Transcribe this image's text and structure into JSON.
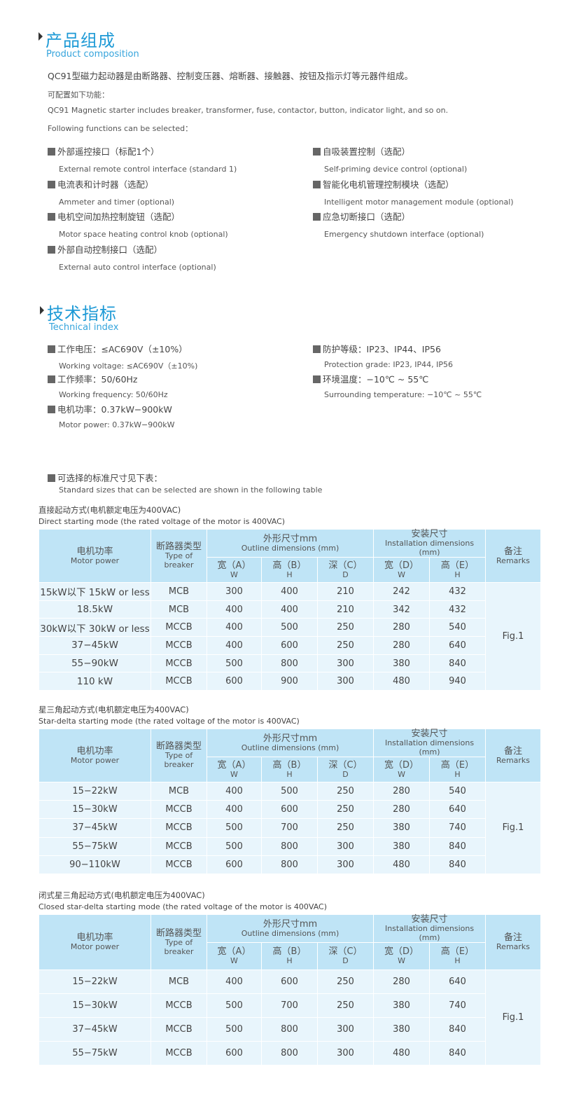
{
  "composition": {
    "title_cn": "产品组成",
    "title_en": "Product composition",
    "intro_cn": "QC91型磁力起动器是由断路器、控制变压器、熔断器、接触器、按钮及指示灯等元器件组成。",
    "config_cn": "可配置如下功能：",
    "intro_en": "QC91 Magnetic starter includes breaker, transformer, fuse, contactor, button, indicator light, and so on.",
    "config_en": "Following functions can be selected：",
    "features": [
      {
        "cn": "外部遥控接口（标配1个）",
        "en": "External remote control interface (standard 1)"
      },
      {
        "cn": "自吸装置控制（选配）",
        "en": "Self-priming device control (optional)"
      },
      {
        "cn": "电流表和计时器（选配）",
        "en": "Ammeter and timer (optional)"
      },
      {
        "cn": "智能化电机管理控制模块（选配）",
        "en": "Intelligent motor management module (optional)"
      },
      {
        "cn": "电机空间加热控制旋钮（选配）",
        "en": "Motor space heating control knob (optional)"
      },
      {
        "cn": "应急切断接口（选配）",
        "en": "Emergency shutdown interface (optional)"
      },
      {
        "cn": "外部自动控制接口（选配）",
        "en": "External auto control interface (optional)"
      }
    ]
  },
  "technical": {
    "title_cn": "技术指标",
    "title_en": "Technical index",
    "specs": [
      {
        "cn": "工作电压：≤AC690V（±10%）",
        "en": "Working voltage: ≤AC690V（±10%)"
      },
      {
        "cn": "防护等级：IP23、IP44、IP56",
        "en": "Protection grade: IP23, IP44, IP56"
      },
      {
        "cn": "工作频率：50/60Hz",
        "en": "Working frequency: 50/60Hz"
      },
      {
        "cn": "环境温度：−10℃ ~ 55℃",
        "en": "Surrounding temperature: −10℃ ~ 55℃"
      },
      {
        "cn": "电机功率：0.37kW−900kW",
        "en": "Motor power: 0.37kW−900kW"
      }
    ],
    "sizes_cn": "可选择的标准尺寸见下表：",
    "sizes_en": "Standard sizes that can be selected are shown in the following table"
  },
  "header": {
    "power_cn": "电机功率",
    "power_en": "Motor power",
    "breaker_cn": "断路器类型",
    "breaker_en": "Type of breaker",
    "outline_cn": "外形尺寸mm",
    "outline_en": "Outline dimensions (mm)",
    "install_cn": "安装尺寸",
    "install_en": "Installation dimensions (mm)",
    "remarks_cn": "备注",
    "remarks_en": "Remarks",
    "a": "宽（A）",
    "a2": "W",
    "b": "高（B）",
    "b2": "H",
    "c": "深（C）",
    "c2": "D",
    "d": "宽（D）",
    "d2": "W",
    "e": "高（E）",
    "e2": "H"
  },
  "tables": [
    {
      "caption_cn": "直接起动方式(电机额定电压为400VAC)",
      "caption_en": "Direct starting mode (the rated voltage of the motor is 400VAC)",
      "remark": "Fig.1",
      "rows": [
        [
          "15kW以下 15kW or less",
          "MCB",
          "300",
          "400",
          "210",
          "242",
          "432"
        ],
        [
          "18.5kW",
          "MCB",
          "400",
          "400",
          "210",
          "342",
          "432"
        ],
        [
          "30kW以下 30kW or less",
          "MCCB",
          "400",
          "500",
          "250",
          "280",
          "540"
        ],
        [
          "37−45kW",
          "MCCB",
          "400",
          "600",
          "250",
          "280",
          "640"
        ],
        [
          "55−90kW",
          "MCCB",
          "500",
          "800",
          "300",
          "380",
          "840"
        ],
        [
          "110 kW",
          "MCCB",
          "600",
          "900",
          "300",
          "480",
          "940"
        ]
      ]
    },
    {
      "caption_cn": "星三角起动方式(电机额定电压为400VAC)",
      "caption_en": "Star-delta starting mode (the rated voltage of the motor is 400VAC)",
      "remark": "Fig.1",
      "rows": [
        [
          "15−22kW",
          "MCB",
          "400",
          "500",
          "250",
          "280",
          "540"
        ],
        [
          "15−30kW",
          "MCCB",
          "400",
          "600",
          "250",
          "280",
          "640"
        ],
        [
          "37−45kW",
          "MCCB",
          "500",
          "700",
          "250",
          "380",
          "740"
        ],
        [
          "55−75kW",
          "MCCB",
          "500",
          "800",
          "300",
          "380",
          "840"
        ],
        [
          "90−110kW",
          "MCCB",
          "600",
          "800",
          "300",
          "480",
          "840"
        ]
      ]
    },
    {
      "caption_cn": "闭式星三角起动方式(电机额定电压为400VAC)",
      "caption_en": "Closed star-delta starting mode (the rated voltage of the motor is 400VAC)",
      "remark": "Fig.1",
      "rows": [
        [
          "15−22kW",
          "MCB",
          "400",
          "600",
          "250",
          "280",
          "640"
        ],
        [
          "15−30kW",
          "MCCB",
          "500",
          "700",
          "250",
          "380",
          "740"
        ],
        [
          "37−45kW",
          "MCCB",
          "500",
          "800",
          "300",
          "380",
          "840"
        ],
        [
          "55−75kW",
          "MCCB",
          "600",
          "800",
          "300",
          "480",
          "840"
        ]
      ]
    }
  ]
}
